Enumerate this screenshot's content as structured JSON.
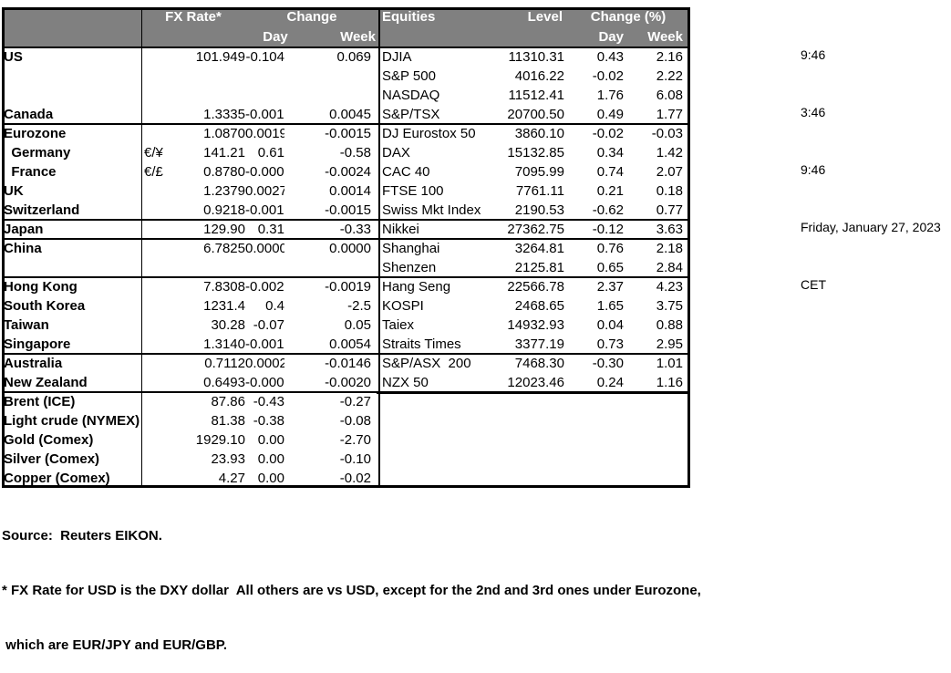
{
  "colors": {
    "header_bg": "#808080",
    "header_text": "#ffffff",
    "grid": "#000000"
  },
  "fx_table": {
    "header": {
      "rate": "FX Rate*",
      "change": "Change",
      "day": "Day",
      "week": "Week"
    }
  },
  "equities_table": {
    "header": {
      "title": "Equities",
      "level": "Level",
      "change": "Change (%)",
      "day": "Day",
      "week": "Week"
    }
  },
  "rows": [
    {
      "label": "US",
      "sym": "",
      "rate": "101.949",
      "day": "-0.104",
      "week": "0.069",
      "eq_label": "DJIA",
      "eq_level": "11310.31",
      "eq_day": "0.43",
      "eq_week": "2.16",
      "sep": false
    },
    {
      "label": "",
      "sym": "",
      "rate": "",
      "day": "",
      "week": "",
      "eq_label": "S&P 500",
      "eq_level": "4016.22",
      "eq_day": "-0.02",
      "eq_week": "2.22",
      "sep": false
    },
    {
      "label": "",
      "sym": "",
      "rate": "",
      "day": "",
      "week": "",
      "eq_label": "NASDAQ",
      "eq_level": "11512.41",
      "eq_day": "1.76",
      "eq_week": "6.08",
      "sep": false
    },
    {
      "label": "Canada",
      "sym": "",
      "rate": "1.3335",
      "day": "-0.0015",
      "week": "0.0045",
      "eq_label": "S&P/TSX",
      "eq_level": "20700.50",
      "eq_day": "0.49",
      "eq_week": "1.77",
      "sep": false
    },
    {
      "label": "Eurozone",
      "sym": "",
      "rate": "1.0870",
      "day": "0.0019",
      "week": "-0.0015",
      "eq_label": "DJ Eurostox 50",
      "eq_level": "3860.10",
      "eq_day": "-0.02",
      "eq_week": "-0.03",
      "sep": true
    },
    {
      "label": "  Germany",
      "sym": "€/¥",
      "rate": "141.21",
      "day": "0.61",
      "week": "-0.58",
      "eq_label": "DAX",
      "eq_level": "15132.85",
      "eq_day": "0.34",
      "eq_week": "1.42",
      "sep": false
    },
    {
      "label": "  France",
      "sym": "€/£",
      "rate": "0.8780",
      "day": "-0.0003",
      "week": "-0.0024",
      "eq_label": "CAC 40",
      "eq_level": "7095.99",
      "eq_day": "0.74",
      "eq_week": "2.07",
      "sep": false
    },
    {
      "label": "UK",
      "sym": "",
      "rate": "1.2379",
      "day": "0.0027",
      "week": "0.0014",
      "eq_label": "FTSE 100",
      "eq_level": "7761.11",
      "eq_day": "0.21",
      "eq_week": "0.18",
      "sep": false
    },
    {
      "label": "Switzerland",
      "sym": "",
      "rate": "0.9218",
      "day": "-0.0017",
      "week": "-0.0015",
      "eq_label": "Swiss Mkt Index",
      "eq_level": "2190.53",
      "eq_day": "-0.62",
      "eq_week": "0.77",
      "sep": false
    },
    {
      "label": "Japan",
      "sym": "",
      "rate": "129.90",
      "day": "0.31",
      "week": "-0.33",
      "eq_label": "Nikkei",
      "eq_level": "27362.75",
      "eq_day": "-0.12",
      "eq_week": "3.63",
      "sep": true
    },
    {
      "label": "China",
      "sym": "",
      "rate": "6.7825",
      "day": "0.0000",
      "week": "0.0000",
      "eq_label": "Shanghai",
      "eq_level": "3264.81",
      "eq_day": "0.76",
      "eq_week": "2.18",
      "sep": true
    },
    {
      "label": "",
      "sym": "",
      "rate": "",
      "day": "",
      "week": "",
      "eq_label": "Shenzen",
      "eq_level": "2125.81",
      "eq_day": "0.65",
      "eq_week": "2.84",
      "sep": false
    },
    {
      "label": "Hong Kong",
      "sym": "",
      "rate": "7.8308",
      "day": "-0.0028",
      "week": "-0.0019",
      "eq_label": "Hang Seng",
      "eq_level": "22566.78",
      "eq_day": "2.37",
      "eq_week": "4.23",
      "sep": true
    },
    {
      "label": "South Korea",
      "sym": "",
      "rate": "1231.4",
      "day": "0.4",
      "week": "-2.5",
      "eq_label": "KOSPI",
      "eq_level": "2468.65",
      "eq_day": "1.65",
      "eq_week": "3.75",
      "sep": false
    },
    {
      "label": "Taiwan",
      "sym": "",
      "rate": "30.28",
      "day": "-0.07",
      "week": "0.05",
      "eq_label": "Taiex",
      "eq_level": "14932.93",
      "eq_day": "0.04",
      "eq_week": "0.88",
      "sep": false
    },
    {
      "label": "Singapore",
      "sym": "",
      "rate": "1.3140",
      "day": "-0.0018",
      "week": "0.0054",
      "eq_label": "Straits Times",
      "eq_level": "3377.19",
      "eq_day": "0.73",
      "eq_week": "2.95",
      "sep": false
    },
    {
      "label": "Australia",
      "sym": "",
      "rate": "0.7112",
      "day": "0.0002",
      "week": "-0.0146",
      "eq_label": "S&P/ASX  200",
      "eq_level": "7468.30",
      "eq_day": "-0.30",
      "eq_week": "1.01",
      "sep": true
    },
    {
      "label": "New Zealand",
      "sym": "",
      "rate": "0.6493",
      "day": "-0.0005",
      "week": "-0.0020",
      "eq_label": "NZX 50",
      "eq_level": "12023.46",
      "eq_day": "0.24",
      "eq_week": "1.16",
      "sep": false
    },
    {
      "label": "Brent (ICE)",
      "sym": "",
      "rate": "87.86",
      "day": "-0.43",
      "week": "-0.27",
      "eq_label": "",
      "eq_level": "",
      "eq_day": "",
      "eq_week": "",
      "sep": true,
      "sep_thick_right": true
    },
    {
      "label": "Light crude (NYMEX)",
      "sym": "",
      "rate": "81.38",
      "day": "-0.38",
      "week": "-0.08",
      "eq_label": "",
      "eq_level": "",
      "eq_day": "",
      "eq_week": "",
      "sep": false
    },
    {
      "label": "Gold (Comex)",
      "sym": "",
      "rate": "1929.10",
      "day": "0.00",
      "week": "-2.70",
      "eq_label": "",
      "eq_level": "",
      "eq_day": "",
      "eq_week": "",
      "sep": false
    },
    {
      "label": "Silver (Comex)",
      "sym": "",
      "rate": "23.93",
      "day": "0.00",
      "week": "-0.10",
      "eq_label": "",
      "eq_level": "",
      "eq_day": "",
      "eq_week": "",
      "sep": false
    },
    {
      "label": "Copper (Comex)",
      "sym": "",
      "rate": "4.27",
      "day": "0.00",
      "week": "-0.02",
      "eq_label": "",
      "eq_level": "",
      "eq_day": "",
      "eq_week": "",
      "sep": false
    }
  ],
  "meta": {
    "times": [
      "9:46",
      "3:46",
      "9:46"
    ],
    "date": "Friday, January 27, 2023",
    "timezone": "CET"
  },
  "footer": {
    "source": "Source:  Reuters EIKON.",
    "note1": "* FX Rate for USD is the DXY dollar  All others are vs USD, except for the 2nd and 3rd ones under Eurozone,",
    "note2": " which are EUR/JPY and EUR/GBP."
  }
}
